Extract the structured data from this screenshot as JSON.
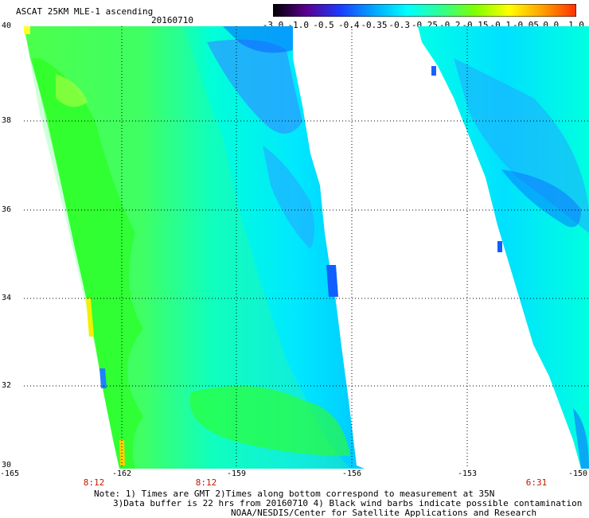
{
  "header": {
    "title": "ASCAT 25KM MLE-1 ascending",
    "date": "20160710"
  },
  "colorbar": {
    "ticks": [
      "-3.0",
      "-1.0",
      "-0.5",
      "-0.4",
      "-0.35",
      "-0.3",
      "-0.25",
      "-0.2",
      "-0.15",
      "-0.1",
      "-0.05",
      "0.0",
      "1.0"
    ],
    "colors": [
      "#000000",
      "#5a0090",
      "#1a3cff",
      "#00a8ff",
      "#00ffff",
      "#30ff90",
      "#80ff00",
      "#ffff00",
      "#ffa000",
      "#ff3000"
    ]
  },
  "map": {
    "lat_labels": [
      "40",
      "38",
      "36",
      "34",
      "32",
      "30"
    ],
    "lon_labels": [
      "-165",
      "-162",
      "-159",
      "-156",
      "-153",
      "-150"
    ],
    "time_labels": [
      {
        "text": "8:12",
        "near_lon": "-163"
      },
      {
        "text": "8:12",
        "near_lon": "-160.5"
      },
      {
        "text": "6:31",
        "near_lon": "-151"
      }
    ],
    "swath_colors": {
      "bright_green": "#20ff00",
      "green": "#50ff40",
      "light_green": "#80ff60",
      "cyan": "#00ffff",
      "light_blue": "#00d8ff",
      "blue": "#0090ff",
      "dark_blue": "#0050ff",
      "yellow": "#f8f000"
    }
  },
  "notes": {
    "line1": "Note: 1) Times are GMT 2)Times along bottom correspond to measurement at 35N",
    "line2": "3)Data buffer is 22 hrs from 20160710 4) Black wind barbs indicate possible contamination",
    "line3": "NOAA/NESDIS/Center for Satellite Applications and Research"
  }
}
